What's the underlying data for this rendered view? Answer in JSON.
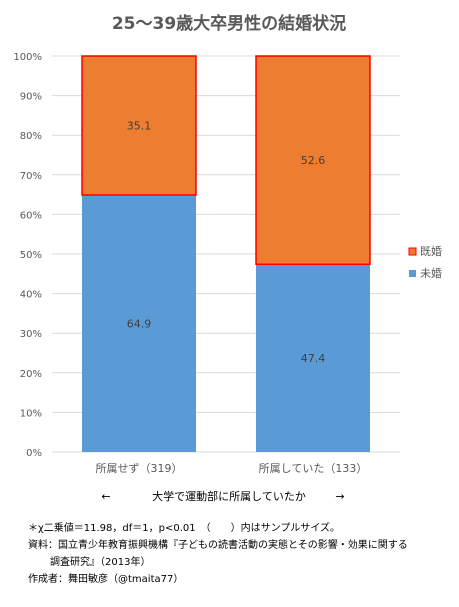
{
  "chart_data": {
    "type": "bar",
    "stacked": true,
    "title": "25～39歳大卒男性の結婚状況",
    "categories": [
      "所属せず（319）",
      "所属していた（133）"
    ],
    "series": [
      {
        "name": "未婚",
        "values": [
          64.9,
          47.4
        ],
        "color": "#5B9BD5"
      },
      {
        "name": "既婚",
        "values": [
          35.1,
          52.6
        ],
        "color": "#ED7D31",
        "border": "#FF0000"
      }
    ],
    "y_ticks": [
      "0%",
      "10%",
      "20%",
      "30%",
      "40%",
      "50%",
      "60%",
      "70%",
      "80%",
      "90%",
      "100%"
    ],
    "ylim": [
      0,
      100
    ],
    "grid": true,
    "legend_position": "right",
    "xlabel": "大学で運動部に所属していたか",
    "xlabel_arrow_left": "←",
    "xlabel_arrow_right": "→"
  },
  "notes": {
    "line1": "＊χ二乗値＝11.98，df＝1，p<0.01　（　　）内はサンプルサイズ。",
    "line2": "資料：国立青少年教育振興機構『子どもの読書活動の実態とその影響・効果に関する",
    "line3": "調査研究』（2013年）",
    "line4": "作成者：舞田敏彦（@tmaita77）"
  }
}
